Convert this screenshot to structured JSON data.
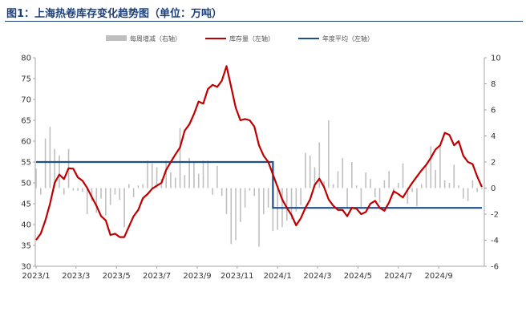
{
  "title": "图1：上海热卷库存变化趋势图（单位：万吨）",
  "chart_data": {
    "type": "bar",
    "legend": [
      {
        "name": "每周增减（右轴）",
        "color": "#bfbfbf",
        "kind": "bar"
      },
      {
        "name": "库存量（左轴）",
        "color": "#c00000",
        "kind": "line"
      },
      {
        "name": "年度平均（左轴）",
        "color": "#1f4e8c",
        "kind": "line"
      }
    ],
    "x_tick_labels": [
      "2023/1",
      "2023/3",
      "2023/5",
      "2023/7",
      "2023/9",
      "2023/11",
      "2024/1",
      "2024/3",
      "2024/5",
      "2024/7",
      "2024/9"
    ],
    "left_axis": {
      "ylim": [
        30,
        80
      ],
      "ticks": [
        30,
        35,
        40,
        45,
        50,
        55,
        60,
        65,
        70,
        75,
        80
      ]
    },
    "right_axis": {
      "ylim": [
        -6,
        10
      ],
      "ticks": [
        -6,
        -4,
        -2,
        0,
        2,
        4,
        6,
        8,
        10
      ]
    },
    "series": [
      {
        "name": "库存量（左轴）",
        "axis": "left",
        "values": [
          36.3,
          37.8,
          41.0,
          45.0,
          50.0,
          52.0,
          50.9,
          53.5,
          53.4,
          51.3,
          50.5,
          48.8,
          46.6,
          44.5,
          42.0,
          41.0,
          37.5,
          37.8,
          37.0,
          37.0,
          39.5,
          42.0,
          43.5,
          46.3,
          47.3,
          48.6,
          49.3,
          50.0,
          53.1,
          55.0,
          56.8,
          58.5,
          62.5,
          64.0,
          66.5,
          69.5,
          69.0,
          72.5,
          73.5,
          73.0,
          74.5,
          78.0,
          73.0,
          68.0,
          65.0,
          65.3,
          65.0,
          63.5,
          59.0,
          56.5,
          55.0,
          52.0,
          49.0,
          46.0,
          44.0,
          42.3,
          39.8,
          41.5,
          44.0,
          46.0,
          49.5,
          51.0,
          49.0,
          46.0,
          44.5,
          43.5,
          43.5,
          42.0,
          44.0,
          43.8,
          42.5,
          43.0,
          45.0,
          45.7,
          44.0,
          43.3,
          45.3,
          48.0,
          47.3,
          46.5,
          48.3,
          50.0,
          51.5,
          53.0,
          54.3,
          56.0,
          58.0,
          59.0,
          62.0,
          61.5,
          59.0,
          60.0,
          56.5,
          55.0,
          54.5,
          51.5,
          49.0
        ],
        "color": "#c00000"
      },
      {
        "name": "年度平均（左轴）",
        "axis": "left",
        "segments": [
          {
            "period": "2023",
            "value": 55.0
          },
          {
            "period": "2024",
            "value": 44.0
          }
        ],
        "color": "#1f4e8c"
      },
      {
        "name": "每周增减（右轴）",
        "axis": "right",
        "values": [
          1.5,
          -0.5,
          3.8,
          4.7,
          3.0,
          2.5,
          -0.5,
          3.0,
          -0.2,
          -0.2,
          -0.3,
          -2.0,
          -1.0,
          -1.9,
          -0.8,
          -2.1,
          -1.3,
          -0.5,
          -0.9,
          -3.0,
          0.3,
          -0.7,
          0.2,
          0.3,
          2.1,
          1.9,
          1.6,
          0.7,
          2.1,
          1.2,
          0.8,
          4.6,
          1.0,
          2.3,
          2.0,
          1.1,
          2.1,
          2.1,
          -0.5,
          1.7,
          -0.6,
          -2.0,
          -4.3,
          -4.0,
          -2.6,
          -1.5,
          -0.2,
          -0.6,
          -4.5,
          -2.0,
          -1.5,
          -3.3,
          -3.2,
          -3.0,
          -2.5,
          -2.4,
          -1.8,
          -1.3,
          2.7,
          2.5,
          1.6,
          3.5,
          0.5,
          5.2,
          0.3,
          1.3,
          2.3,
          -1.6,
          2.0,
          0.2,
          -1.6,
          1.2,
          0.7,
          -0.7,
          -1.1,
          0.6,
          1.3,
          -0.5,
          0.4,
          1.9,
          -1.2,
          -0.3,
          -1.4,
          0.3,
          1.7,
          3.2,
          1.4,
          3.3,
          0.6,
          0.4,
          1.8,
          0.2,
          -0.8,
          -1.0,
          0.6,
          -0.3,
          -0.1
        ],
        "color": "#bfbfbf"
      }
    ]
  }
}
